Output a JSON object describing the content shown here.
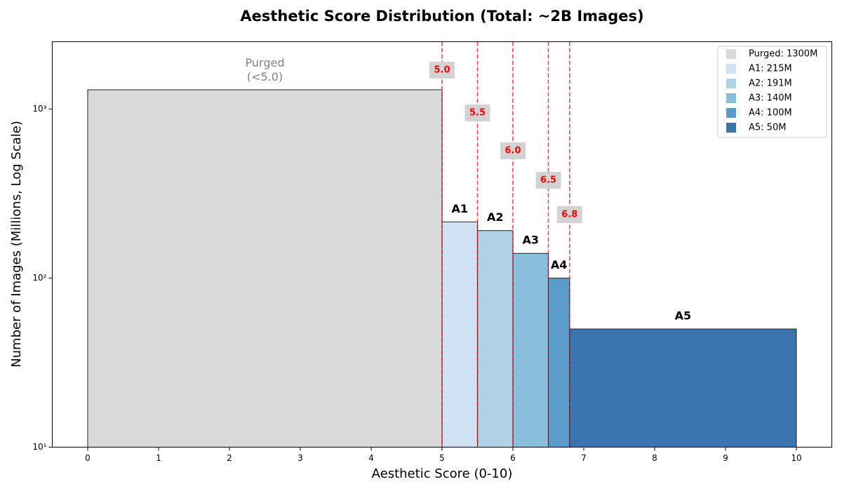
{
  "chart_data": {
    "type": "histogram",
    "title": "Aesthetic Score Distribution (Total: ~2B Images)",
    "xlabel": "Aesthetic Score (0-10)",
    "ylabel": "Number of Images (Millions, Log Scale)",
    "bins": [
      0,
      5,
      5.5,
      6,
      6.5,
      6.8,
      10
    ],
    "values": [
      1300,
      215,
      191,
      140,
      100,
      50
    ],
    "bar_labels": [
      "Purged\n(<5.0)",
      "A1",
      "A2",
      "A3",
      "A4",
      "A5"
    ],
    "colors": [
      "#d9d9d9",
      "#cfe1f2",
      "#b0d2e7",
      "#89bedc",
      "#5b9bc9",
      "#3a75b0"
    ],
    "legend_labels": [
      "Purged: 1300M",
      "A1: 215M",
      "A2: 191M",
      "A3: 140M",
      "A4: 100M",
      "A5: 50M"
    ],
    "legend_position": "upper right",
    "thresholds": [
      {
        "value": 5,
        "label": "5.0"
      },
      5.5,
      {
        "value": 6,
        "label": "6.0"
      },
      6.5,
      6.8
    ],
    "threshold_color": "#ff0000",
    "xlim": [
      -0.5,
      10.5
    ],
    "xticks": [
      0,
      1,
      2,
      3,
      4,
      5,
      6,
      7,
      8,
      9,
      10
    ],
    "ylim": [
      10,
      2500
    ],
    "log_y": true,
    "yticks": [
      {
        "value": 10,
        "label": "10¹"
      },
      {
        "value": 100,
        "label": "10²"
      },
      {
        "value": 1000,
        "label": "10³"
      }
    ]
  }
}
